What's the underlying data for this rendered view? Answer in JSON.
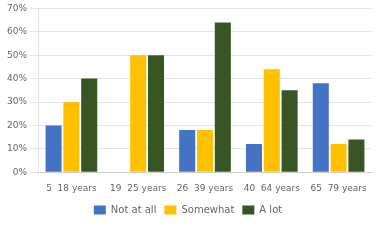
{
  "chart_data": {
    "type": "bar",
    "categories": [
      "5  18 years",
      "19  25 years",
      "26  39 years",
      "40  64 years",
      "65  79 years"
    ],
    "series": [
      {
        "name": "Not at all",
        "color": "#4472C4",
        "values": [
          20,
          0,
          18,
          12,
          38
        ]
      },
      {
        "name": "Somewhat",
        "color": "#FFC000",
        "values": [
          30,
          50,
          18,
          44,
          12
        ]
      },
      {
        "name": "A lot",
        "color": "#375623",
        "values": [
          40,
          50,
          64,
          35,
          14
        ]
      }
    ],
    "ylim": [
      0,
      70
    ],
    "yticks": [
      {
        "value": 0,
        "label": "0%"
      },
      {
        "value": 10,
        "label": "10%"
      },
      {
        "value": 20,
        "label": "20%"
      },
      {
        "value": 30,
        "label": "30%"
      },
      {
        "value": 40,
        "label": "40%"
      },
      {
        "value": 50,
        "label": "50%"
      },
      {
        "value": 60,
        "label": "60%"
      },
      {
        "value": 70,
        "label": "70%"
      }
    ],
    "grid": true,
    "legend": "bottom"
  }
}
